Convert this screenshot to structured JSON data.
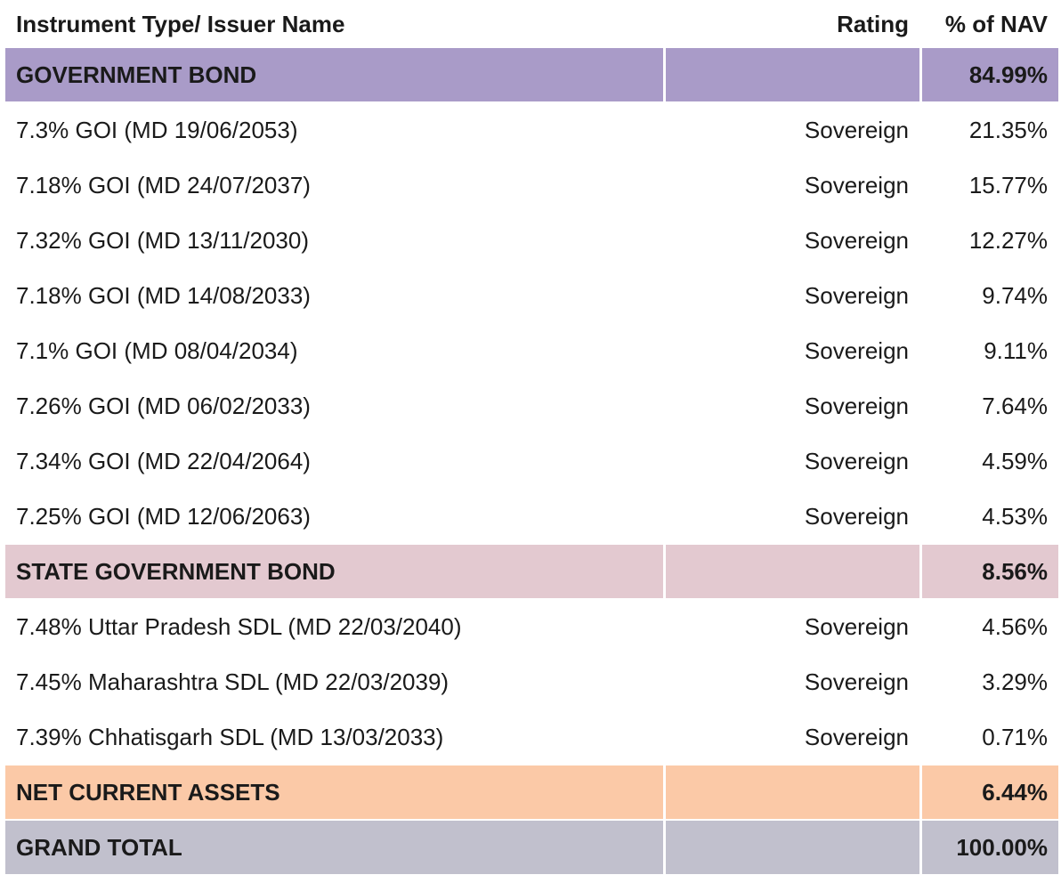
{
  "table": {
    "columns": {
      "instrument": "Instrument Type/ Issuer Name",
      "rating": "Rating",
      "nav": "% of NAV"
    },
    "rows": [
      {
        "type": "section",
        "name": "GOVERNMENT BOND",
        "rating": "",
        "nav": "84.99%",
        "bg": "government_bond_bg"
      },
      {
        "type": "data",
        "name": "7.3% GOI (MD 19/06/2053)",
        "rating": "Sovereign",
        "nav": "21.35%",
        "bg": ""
      },
      {
        "type": "data",
        "name": "7.18% GOI (MD 24/07/2037)",
        "rating": "Sovereign",
        "nav": "15.77%",
        "bg": ""
      },
      {
        "type": "data",
        "name": "7.32% GOI (MD 13/11/2030)",
        "rating": "Sovereign",
        "nav": "12.27%",
        "bg": ""
      },
      {
        "type": "data",
        "name": "7.18% GOI (MD 14/08/2033)",
        "rating": "Sovereign",
        "nav": "9.74%",
        "bg": ""
      },
      {
        "type": "data",
        "name": "7.1% GOI (MD 08/04/2034)",
        "rating": "Sovereign",
        "nav": "9.11%",
        "bg": ""
      },
      {
        "type": "data",
        "name": "7.26% GOI (MD 06/02/2033)",
        "rating": "Sovereign",
        "nav": "7.64%",
        "bg": ""
      },
      {
        "type": "data",
        "name": "7.34% GOI (MD 22/04/2064)",
        "rating": "Sovereign",
        "nav": "4.59%",
        "bg": ""
      },
      {
        "type": "data",
        "name": "7.25% GOI (MD 12/06/2063)",
        "rating": "Sovereign",
        "nav": "4.53%",
        "bg": ""
      },
      {
        "type": "section",
        "name": "STATE GOVERNMENT BOND",
        "rating": "",
        "nav": "8.56%",
        "bg": "state_government_bond_bg"
      },
      {
        "type": "data",
        "name": "7.48% Uttar Pradesh SDL (MD 22/03/2040)",
        "rating": "Sovereign",
        "nav": "4.56%",
        "bg": ""
      },
      {
        "type": "data",
        "name": "7.45% Maharashtra SDL (MD 22/03/2039)",
        "rating": "Sovereign",
        "nav": "3.29%",
        "bg": ""
      },
      {
        "type": "data",
        "name": "7.39% Chhatisgarh SDL (MD 13/03/2033)",
        "rating": "Sovereign",
        "nav": "0.71%",
        "bg": ""
      },
      {
        "type": "section",
        "name": "NET CURRENT ASSETS",
        "rating": "",
        "nav": "6.44%",
        "bg": "net_current_assets_bg"
      },
      {
        "type": "total",
        "name": "GRAND TOTAL",
        "rating": "",
        "nav": "100.00%",
        "bg": "grand_total_bg"
      }
    ]
  },
  "colors": {
    "government_bond_bg": "#a99bc8",
    "state_government_bond_bg": "#e3c9d0",
    "net_current_assets_bg": "#fbc9a7",
    "grand_total_bg": "#c1c0cd",
    "text": "#1a1a1a",
    "row_bg": "#ffffff"
  }
}
